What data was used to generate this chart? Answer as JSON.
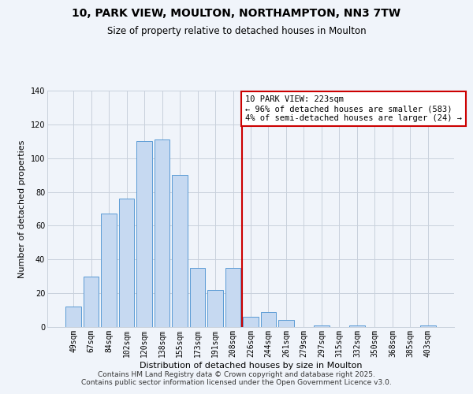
{
  "title": "10, PARK VIEW, MOULTON, NORTHAMPTON, NN3 7TW",
  "subtitle": "Size of property relative to detached houses in Moulton",
  "xlabel": "Distribution of detached houses by size in Moulton",
  "ylabel": "Number of detached properties",
  "bar_labels": [
    "49sqm",
    "67sqm",
    "84sqm",
    "102sqm",
    "120sqm",
    "138sqm",
    "155sqm",
    "173sqm",
    "191sqm",
    "208sqm",
    "226sqm",
    "244sqm",
    "261sqm",
    "279sqm",
    "297sqm",
    "315sqm",
    "332sqm",
    "350sqm",
    "368sqm",
    "385sqm",
    "403sqm"
  ],
  "bar_values": [
    12,
    30,
    67,
    76,
    110,
    111,
    90,
    35,
    22,
    35,
    6,
    9,
    4,
    0,
    1,
    0,
    1,
    0,
    0,
    0,
    1
  ],
  "bar_color": "#c6d9f1",
  "bar_edge_color": "#5b9bd5",
  "vline_index": 10,
  "vline_color": "#cc0000",
  "annotation_line1": "10 PARK VIEW: 223sqm",
  "annotation_line2": "← 96% of detached houses are smaller (583)",
  "annotation_line3": "4% of semi-detached houses are larger (24) →",
  "annotation_box_color": "#ffffff",
  "annotation_box_edge": "#cc0000",
  "ylim": [
    0,
    140
  ],
  "yticks": [
    0,
    20,
    40,
    60,
    80,
    100,
    120,
    140
  ],
  "bg_color": "#f0f4fa",
  "grid_color": "#c8d0dc",
  "footer_line1": "Contains HM Land Registry data © Crown copyright and database right 2025.",
  "footer_line2": "Contains public sector information licensed under the Open Government Licence v3.0.",
  "title_fontsize": 10,
  "subtitle_fontsize": 8.5,
  "axis_label_fontsize": 8,
  "tick_fontsize": 7,
  "annotation_fontsize": 7.5,
  "footer_fontsize": 6.5
}
